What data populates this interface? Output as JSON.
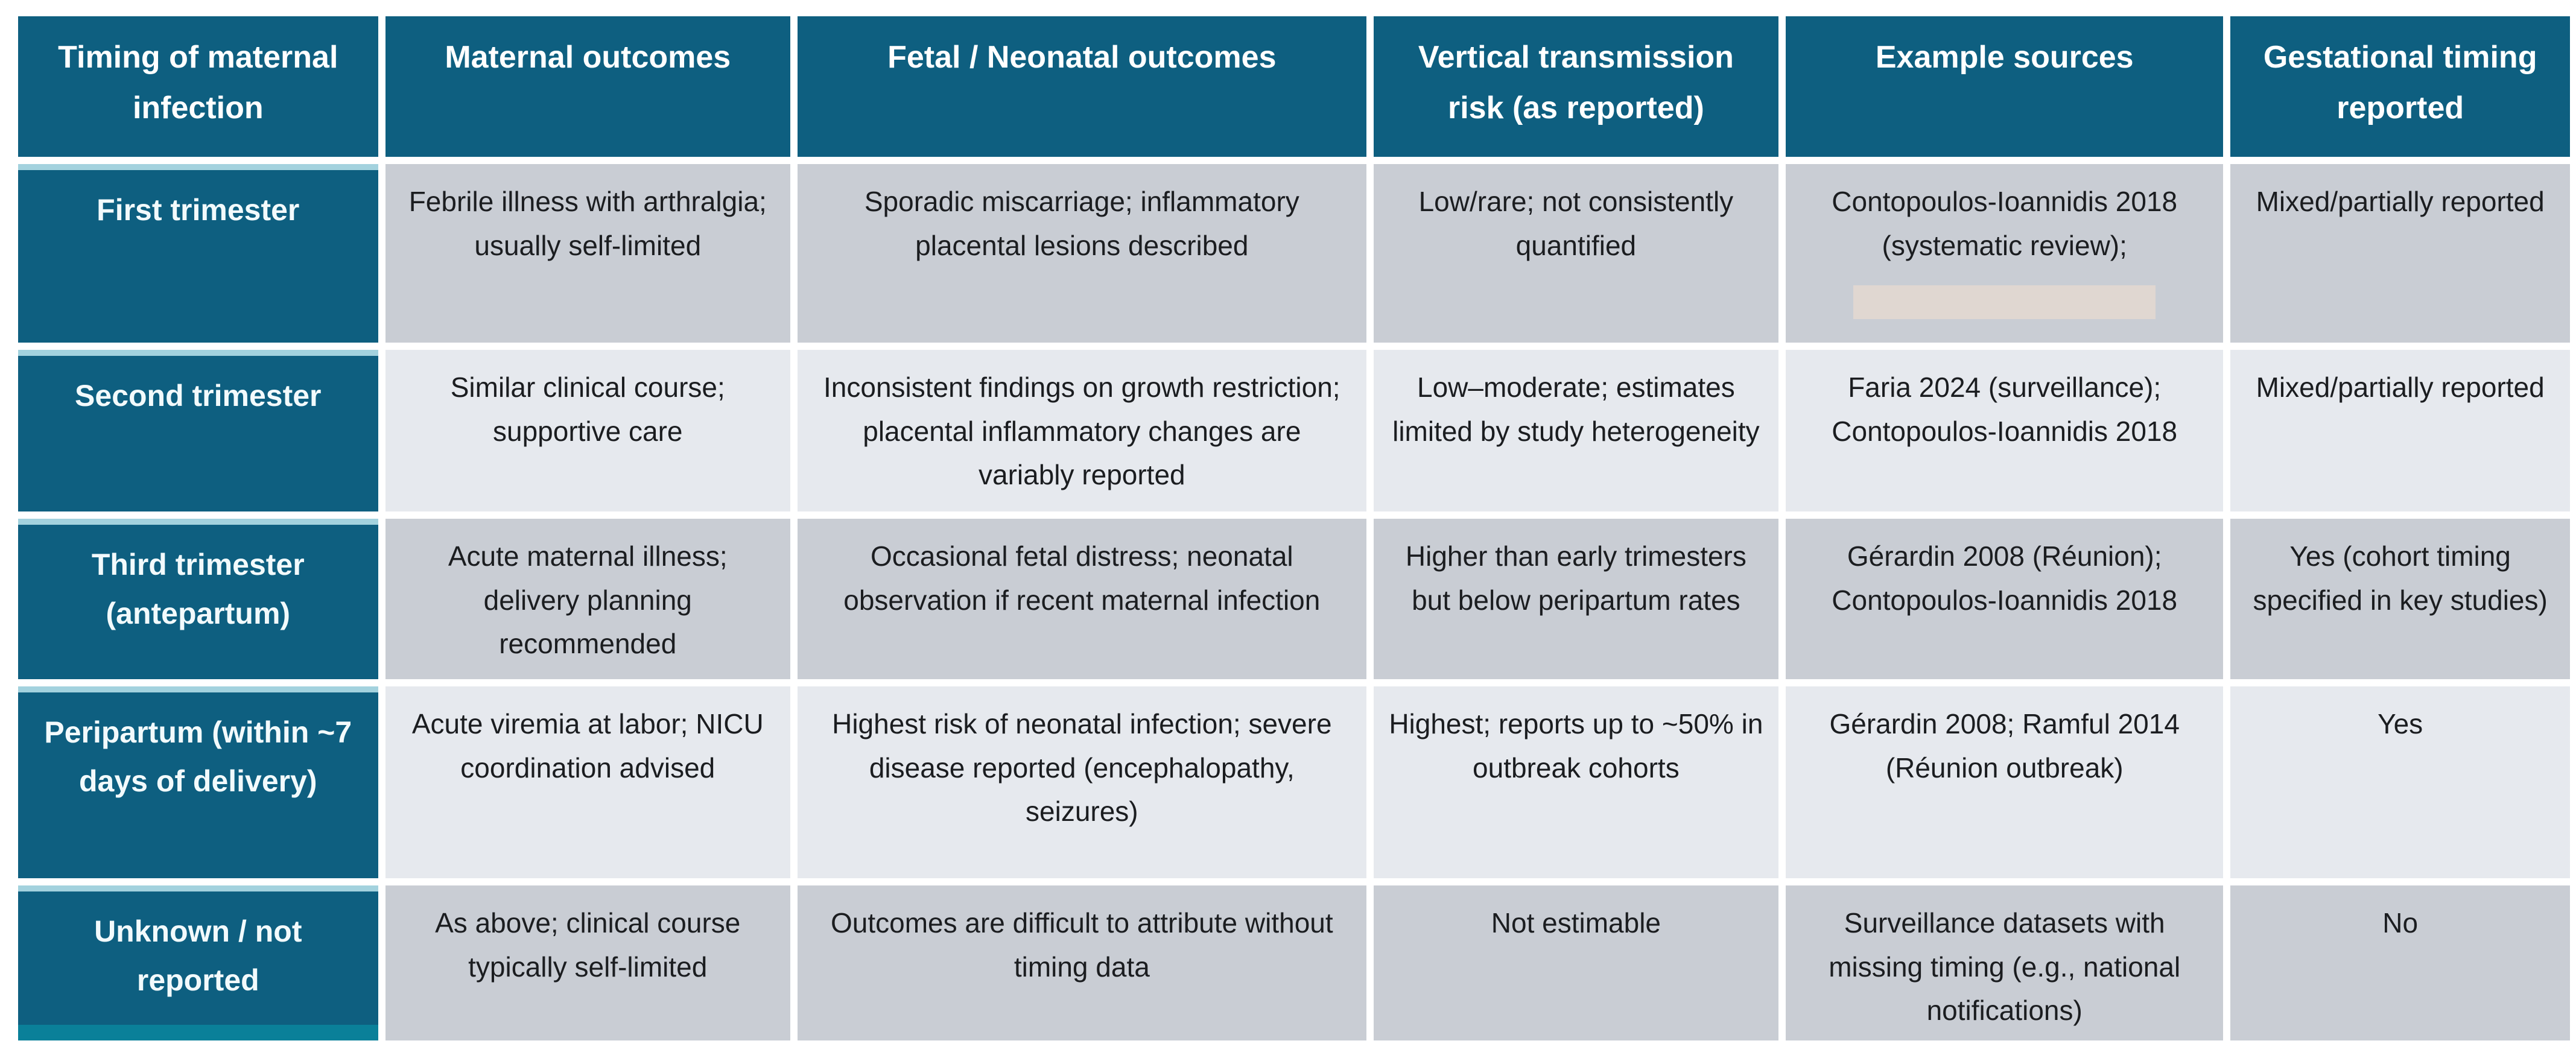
{
  "table": {
    "header": [
      "Timing of maternal infection",
      "Maternal outcomes",
      "Fetal / Neonatal outcomes",
      "Vertical transmission risk (as reported)",
      "Example sources",
      "Gestational timing reported"
    ],
    "rows": [
      {
        "label": "First trimester",
        "maternal_outcomes": "Febrile illness with arthralgia; usually self-limited",
        "fetal_neonatal_outcomes": "Sporadic miscarriage; inflammatory placental lesions described",
        "vertical_transmission_risk": "Low/rare; not consistently quantified",
        "example_sources": "Contopoulos-Ioannidis 2018 (systematic review);",
        "gestational_timing_reported": "Mixed/partially reported"
      },
      {
        "label": "Second trimester",
        "maternal_outcomes": "Similar clinical course; supportive care",
        "fetal_neonatal_outcomes": "Inconsistent findings on growth restriction; placental inflammatory changes are variably reported",
        "vertical_transmission_risk": "Low–moderate; estimates limited by study heterogeneity",
        "example_sources": "Faria 2024 (surveillance); Contopoulos-Ioannidis 2018",
        "gestational_timing_reported": "Mixed/partially reported"
      },
      {
        "label": "Third trimester (antepartum)",
        "maternal_outcomes": "Acute maternal illness; delivery planning recommended",
        "fetal_neonatal_outcomes": "Occasional fetal distress; neonatal observation if recent maternal infection",
        "vertical_transmission_risk": "Higher than early trimesters but below peripartum rates",
        "example_sources": "Gérardin 2008 (Réunion); Contopoulos-Ioannidis 2018",
        "gestational_timing_reported": "Yes (cohort timing specified in key studies)"
      },
      {
        "label": "Peripartum (within ~7 days of delivery)",
        "maternal_outcomes": "Acute viremia at labor; NICU coordination advised",
        "fetal_neonatal_outcomes": "Highest risk of neonatal infection; severe disease reported (encephalopathy, seizures)",
        "vertical_transmission_risk": "Highest; reports up to ~50% in outbreak cohorts",
        "example_sources": "Gérardin 2008; Ramful 2014 (Réunion outbreak)",
        "gestational_timing_reported": "Yes"
      },
      {
        "label": "Unknown / not reported",
        "maternal_outcomes": "As above; clinical course typically self-limited",
        "fetal_neonatal_outcomes": "Outcomes are difficult to attribute without timing data",
        "vertical_transmission_risk": "Not estimable",
        "example_sources": "Surveillance datasets with missing timing (e.g., national notifications)",
        "gestational_timing_reported": "No"
      }
    ]
  },
  "colors": {
    "header_teal": "#0e5f80",
    "label_top_separator": "#a3d2de",
    "label_bottom_edge": "#0a8099",
    "row_dark_gray": "#c9cdd4",
    "row_light_gray": "#e6e9ee",
    "redaction_highlight": "#e0d7d1",
    "body_text": "#1b1d20",
    "header_text": "#ffffff"
  }
}
